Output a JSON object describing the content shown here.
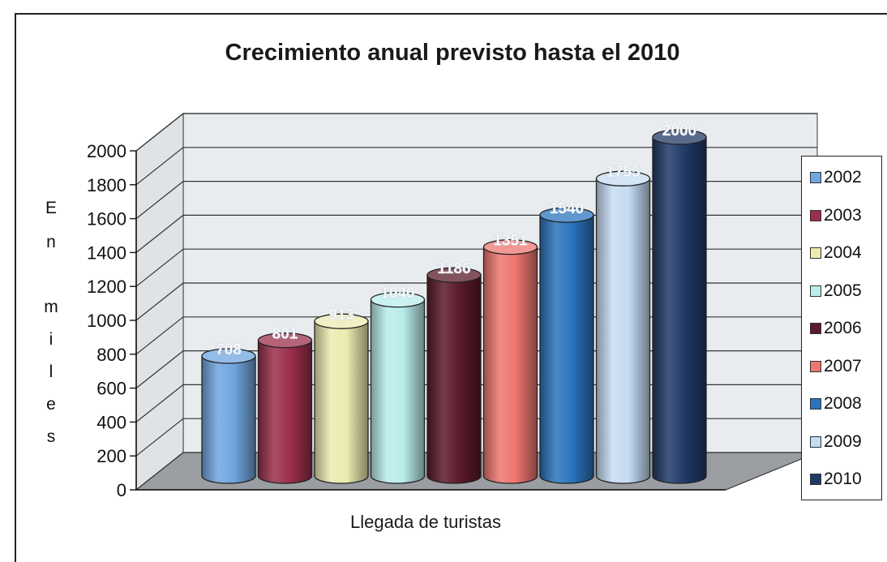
{
  "chart_data": {
    "type": "bar",
    "title": "Crecimiento anual previsto hasta el 2010",
    "xlabel": "Llegada de turistas",
    "ylabel_letters": [
      "E",
      "n",
      "m",
      "i",
      "l",
      "e",
      "s"
    ],
    "ylim": [
      0,
      2000
    ],
    "yticks": [
      "0",
      "200",
      "400",
      "600",
      "800",
      "1000",
      "1200",
      "1400",
      "1600",
      "1800",
      "2000"
    ],
    "grid": true,
    "legend_position": "right",
    "series": [
      {
        "name": "2002",
        "values": [
          708
        ],
        "label": "708",
        "color": "#6fa6df"
      },
      {
        "name": "2003",
        "values": [
          801
        ],
        "label": "801",
        "color": "#9b2f4b"
      },
      {
        "name": "2004",
        "values": [
          913
        ],
        "label": "913",
        "color": "#ecebb0"
      },
      {
        "name": "2005",
        "values": [
          1040
        ],
        "label": "1040",
        "color": "#b9eceb"
      },
      {
        "name": "2006",
        "values": [
          1186
        ],
        "label": "1186",
        "color": "#5a1a2a"
      },
      {
        "name": "2007",
        "values": [
          1351
        ],
        "label": "1351",
        "color": "#ee7670"
      },
      {
        "name": "2008",
        "values": [
          1540
        ],
        "label": "1540",
        "color": "#2a74bd"
      },
      {
        "name": "2009",
        "values": [
          1755
        ],
        "label": "1755",
        "color": "#c5dcf3"
      },
      {
        "name": "2010",
        "values": [
          2000
        ],
        "label": "2000",
        "color": "#203a66"
      }
    ]
  }
}
